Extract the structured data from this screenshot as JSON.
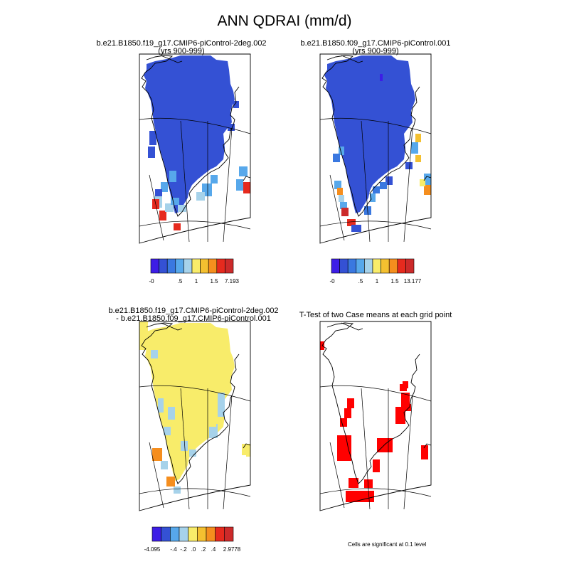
{
  "figure": {
    "title": "ANN QDRAI (mm/d)"
  },
  "panels": [
    {
      "id": "case1",
      "title_lines": [
        "b.e21.B1850.f19_g17.CMIP6-piControl-2deg.002",
        "(yrs 900-999)"
      ],
      "colorbar": {
        "colors": [
          "#3d1de6",
          "#3451d4",
          "#3a78e0",
          "#57a8eb",
          "#a6d2ea",
          "#f8ec6a",
          "#f4c030",
          "#f58e1e",
          "#e62a1e",
          "#cc2a2a"
        ],
        "tick_labels": [
          "-0",
          ".5",
          "1",
          "1.5",
          "7.193"
        ]
      }
    },
    {
      "id": "case2",
      "title_lines": [
        "b.e21.B1850.f09_g17.CMIP6-piControl.001",
        "(yrs 900-999)"
      ],
      "colorbar": {
        "colors": [
          "#3d1de6",
          "#3451d4",
          "#3a78e0",
          "#57a8eb",
          "#a6d2ea",
          "#f8ec6a",
          "#f4c030",
          "#f58e1e",
          "#e62a1e",
          "#cc2a2a"
        ],
        "tick_labels": [
          "-0",
          ".5",
          "1",
          "1.5",
          "13.177"
        ]
      }
    },
    {
      "id": "diff",
      "title_lines": [
        "b.e21.B1850.f19_g17.CMIP6-piControl-2deg.002",
        "- b.e21.B1850.f09_g17.CMIP6-piControl.001"
      ],
      "colorbar": {
        "colors": [
          "#3d1de6",
          "#3451d4",
          "#57a8eb",
          "#a6d2ea",
          "#f8ec6a",
          "#f4c030",
          "#f58e1e",
          "#e62a1e",
          "#cc2a2a"
        ],
        "tick_labels": [
          "-4.095",
          "-.4",
          "-.2",
          ".0",
          ".2",
          ".4",
          "2.9778"
        ]
      }
    },
    {
      "id": "ttest",
      "title_lines": [
        "T-Test of two Case means at each grid point"
      ],
      "note": "Cells are significant at 0.1 level",
      "colors": {
        "significant": "#ff0000"
      }
    }
  ],
  "chart_data": [
    {
      "type": "heatmap",
      "title": "b.e21.B1850.f19_g17.CMIP6-piControl-2deg.002 (yrs 900-999)",
      "variable": "ANN QDRAI (mm/d)",
      "region": "Greenland (polar stereographic)",
      "levels": [
        0,
        0.5,
        1,
        1.5,
        7.193
      ],
      "dominant_class": "lowest (~0 mm/d) over ice sheet",
      "coastal_classes": [
        "low-mid blue",
        "light blue",
        "red (highest)"
      ]
    },
    {
      "type": "heatmap",
      "title": "b.e21.B1850.f09_g17.CMIP6-piControl.001 (yrs 900-999)",
      "variable": "ANN QDRAI (mm/d)",
      "levels": [
        0,
        0.5,
        1,
        1.5,
        13.177
      ],
      "dominant_class": "lowest (~0 mm/d) over ice sheet",
      "coastal_classes": [
        "blue",
        "orange",
        "yellow",
        "red (highest)"
      ]
    },
    {
      "type": "heatmap",
      "title": "Difference (2deg.002 - f09.001)",
      "levels": [
        -4.095,
        -0.4,
        -0.2,
        0.0,
        0.2,
        0.4,
        2.9778
      ],
      "dominant_class": "0 to 0.2 (yellow)",
      "coastal_classes": [
        "light blue (-0.2 to 0)",
        "orange",
        "red"
      ]
    },
    {
      "type": "heatmap",
      "title": "T-Test of two Case means at each grid point",
      "significance_level": 0.1,
      "significant_cells": "west and east coastal margins, south tip"
    }
  ]
}
